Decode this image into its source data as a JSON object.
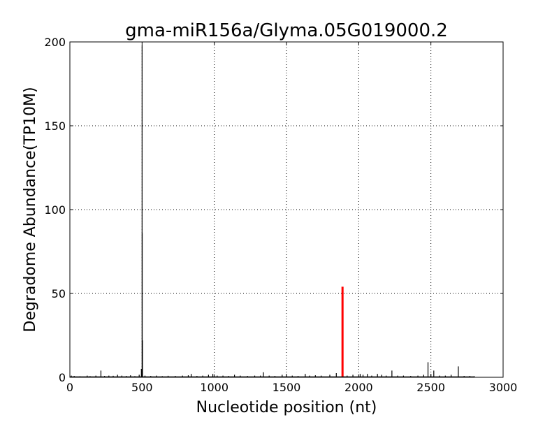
{
  "chart_data": {
    "type": "bar",
    "title": "gma-miR156a/Glyma.05G019000.2",
    "xlabel": "Nucleotide position (nt)",
    "ylabel": "Degradome Abundance(TP10M)",
    "xlim": [
      0,
      3000
    ],
    "ylim": [
      0,
      200
    ],
    "xticks": [
      0,
      500,
      1000,
      1500,
      2000,
      2500,
      3000
    ],
    "yticks": [
      0,
      50,
      100,
      150,
      200
    ],
    "grid": true,
    "series": [
      {
        "color": "#000000",
        "points": [
          [
            10,
            1
          ],
          [
            30,
            0.8
          ],
          [
            70,
            0.6
          ],
          [
            120,
            1
          ],
          [
            140,
            0.7
          ],
          [
            180,
            1
          ],
          [
            215,
            4
          ],
          [
            240,
            0.8
          ],
          [
            270,
            1
          ],
          [
            300,
            0.9
          ],
          [
            330,
            1.5
          ],
          [
            360,
            1
          ],
          [
            390,
            0.8
          ],
          [
            420,
            1.2
          ],
          [
            450,
            0.7
          ],
          [
            480,
            1.5
          ],
          [
            495,
            5
          ],
          [
            500,
            198
          ],
          [
            501,
            86
          ],
          [
            503,
            22
          ],
          [
            520,
            1
          ],
          [
            560,
            0.8
          ],
          [
            600,
            1
          ],
          [
            640,
            0.7
          ],
          [
            680,
            0.9
          ],
          [
            730,
            0.8
          ],
          [
            780,
            1
          ],
          [
            820,
            1.2
          ],
          [
            840,
            2
          ],
          [
            880,
            0.8
          ],
          [
            920,
            1
          ],
          [
            960,
            1.5
          ],
          [
            990,
            2
          ],
          [
            1020,
            1
          ],
          [
            1060,
            1
          ],
          [
            1100,
            0.8
          ],
          [
            1140,
            1.5
          ],
          [
            1180,
            1
          ],
          [
            1230,
            0.8
          ],
          [
            1280,
            1
          ],
          [
            1320,
            1
          ],
          [
            1340,
            3
          ],
          [
            1380,
            1
          ],
          [
            1420,
            0.8
          ],
          [
            1470,
            1.5
          ],
          [
            1500,
            2
          ],
          [
            1540,
            1
          ],
          [
            1580,
            0.8
          ],
          [
            1630,
            2
          ],
          [
            1660,
            1
          ],
          [
            1700,
            1.2
          ],
          [
            1740,
            1
          ],
          [
            1800,
            1.5
          ],
          [
            1845,
            2.5
          ],
          [
            1886,
            10
          ],
          [
            1920,
            1
          ],
          [
            1960,
            1.5
          ],
          [
            2010,
            2
          ],
          [
            2030,
            1.5
          ],
          [
            2060,
            2
          ],
          [
            2090,
            1
          ],
          [
            2130,
            2
          ],
          [
            2160,
            1.5
          ],
          [
            2190,
            1
          ],
          [
            2230,
            4
          ],
          [
            2270,
            1
          ],
          [
            2310,
            1
          ],
          [
            2360,
            0.8
          ],
          [
            2410,
            1
          ],
          [
            2450,
            1.5
          ],
          [
            2480,
            9
          ],
          [
            2500,
            2
          ],
          [
            2520,
            4
          ],
          [
            2560,
            1
          ],
          [
            2600,
            1
          ],
          [
            2640,
            1.5
          ],
          [
            2690,
            6.5
          ],
          [
            2730,
            0.8
          ],
          [
            2770,
            0.8
          ],
          [
            2800,
            0.7
          ]
        ]
      },
      {
        "color": "#ff0000",
        "points": [
          [
            1888,
            54
          ]
        ]
      }
    ]
  }
}
